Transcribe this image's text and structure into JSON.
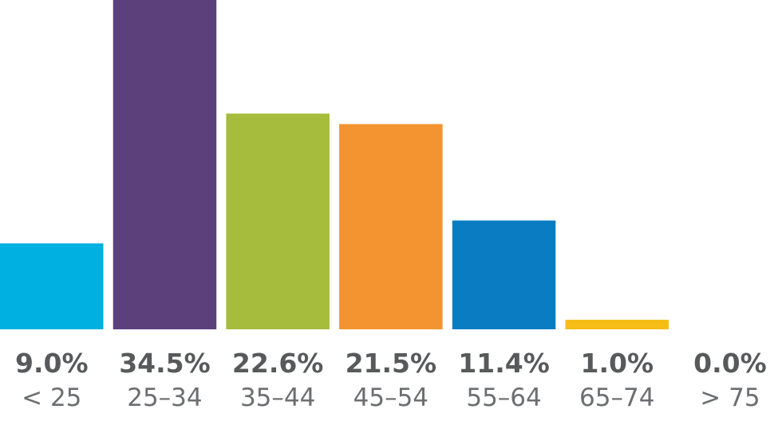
{
  "chart_data": {
    "type": "bar",
    "title": "",
    "xlabel": "",
    "ylabel": "",
    "categories": [
      "< 25",
      "25–34",
      "35–44",
      "45–54",
      "55–64",
      "65–74",
      "> 75"
    ],
    "values": [
      9.0,
      34.5,
      22.6,
      21.5,
      11.4,
      1.0,
      0.0
    ],
    "value_labels": [
      "9.0%",
      "34.5%",
      "22.6%",
      "21.5%",
      "11.4%",
      "1.0%",
      "0.0%"
    ],
    "colors": [
      "#00b0e0",
      "#5b407c",
      "#a5bc3c",
      "#f39430",
      "#0a7dc2",
      "#f6bd16",
      "#cccccc"
    ],
    "ylim": [
      0,
      34.5
    ],
    "grid": false,
    "legend": "none"
  }
}
